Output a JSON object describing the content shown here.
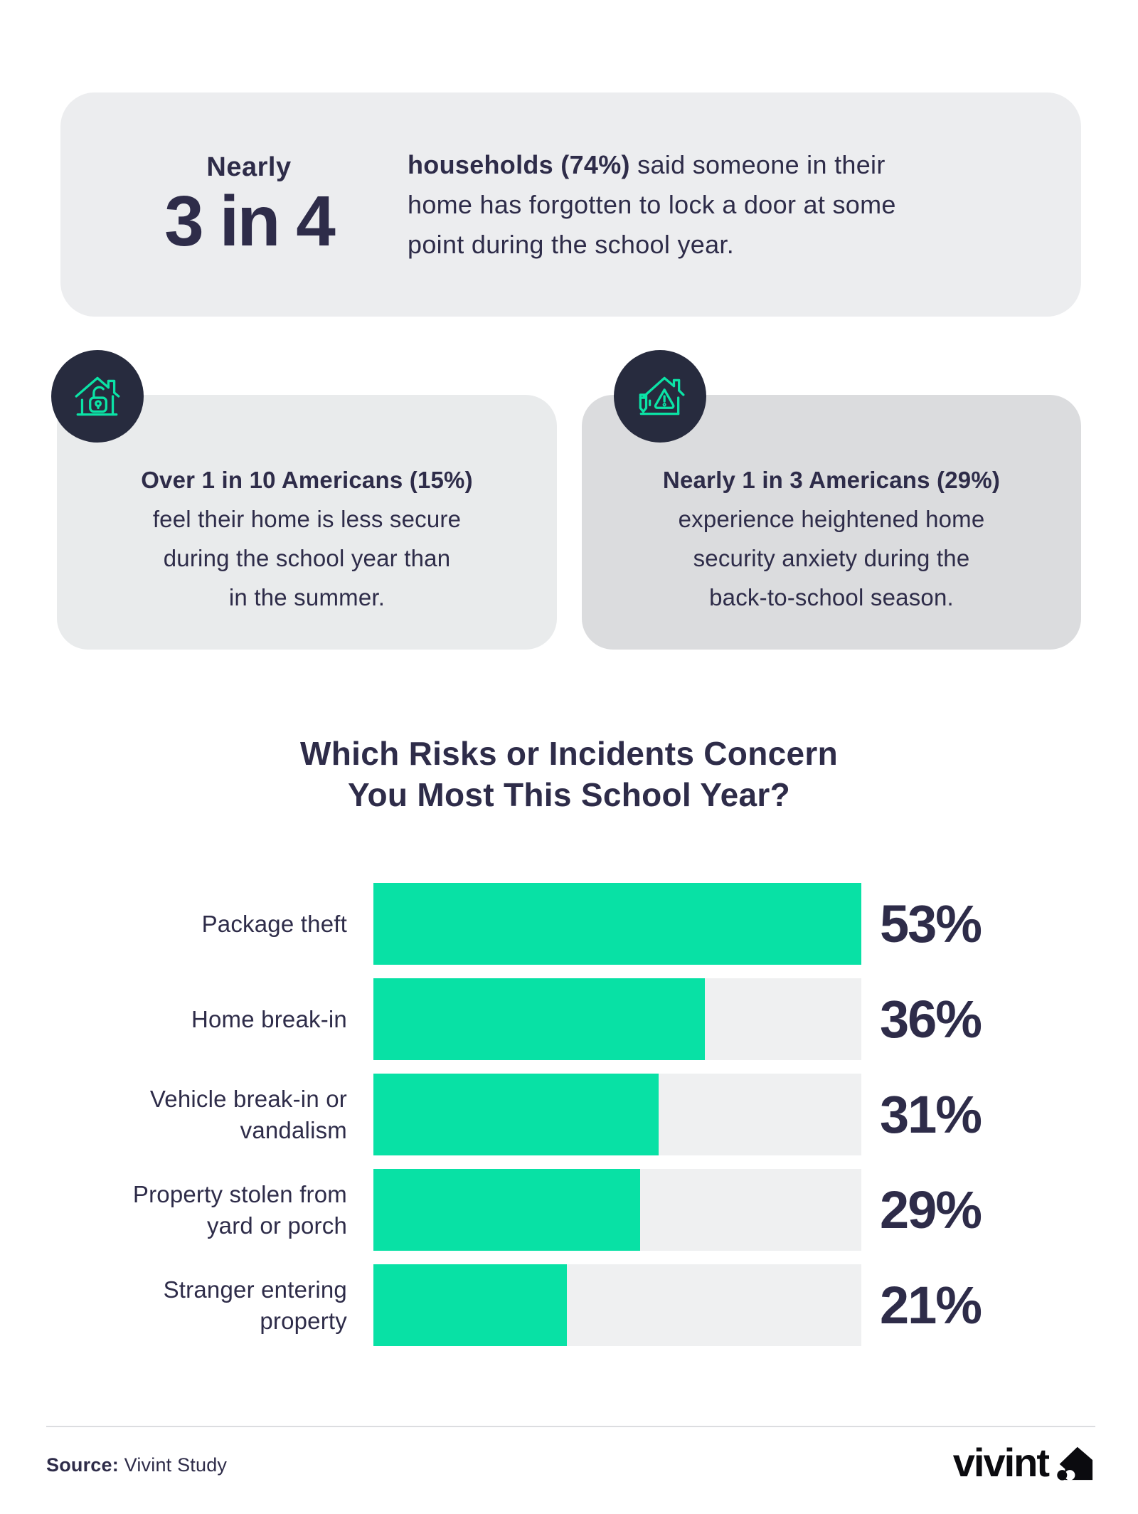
{
  "theme": {
    "background": "#ffffff",
    "text_navy": "#2E2C49",
    "icon_circle_bg": "#272B3E",
    "icon_stroke_green": "#0BE3A6",
    "bar_green": "#08E1A5",
    "bar_track_gray": "#EFF0F1",
    "top_card_bg": "#ECEDEF",
    "left_card_bg": "#E9EBEC",
    "right_card_bg": "#DBDCDE",
    "logo_black": "#0b0b0f"
  },
  "top_card": {
    "prefix": "Nearly",
    "big_stat": "3 in 4",
    "line1_bold": "households (74%)",
    "line1_rest": " said someone in their",
    "line2": "home has forgotten to lock a door at some",
    "line3": "point during the school year."
  },
  "stat_cards": [
    {
      "icon": "house-unlocked-icon",
      "bold_line": "Over 1 in 10 Americans (15%)",
      "lines": [
        "feel their home is less secure",
        "during the school year than",
        "in the summer."
      ]
    },
    {
      "icon": "house-alert-pencil-icon",
      "bold_line": "Nearly 1 in 3 Americans (29%)",
      "lines": [
        "experience heightened home",
        "security anxiety during the",
        "back-to-school season."
      ]
    }
  ],
  "chart_data": {
    "type": "bar",
    "orientation": "horizontal",
    "title_line1": "Which Risks or Incidents Concern",
    "title_line2": "You Most This School Year?",
    "categories": [
      "Package theft",
      "Home break-in",
      "Vehicle break-in or vandalism",
      "Property stolen from yard or porch",
      "Stranger entering property"
    ],
    "values": [
      53,
      36,
      31,
      29,
      21
    ],
    "display_values": [
      "53%",
      "36%",
      "31%",
      "29%",
      "21%"
    ],
    "value_suffix": "%",
    "scale_max": 53,
    "bar_color": "#08E1A5",
    "track_color": "#EFF0F1",
    "grid": false,
    "legend": false
  },
  "footer": {
    "source_label": "Source:",
    "source_value": " Vivint Study",
    "brand_name": "vivint"
  }
}
